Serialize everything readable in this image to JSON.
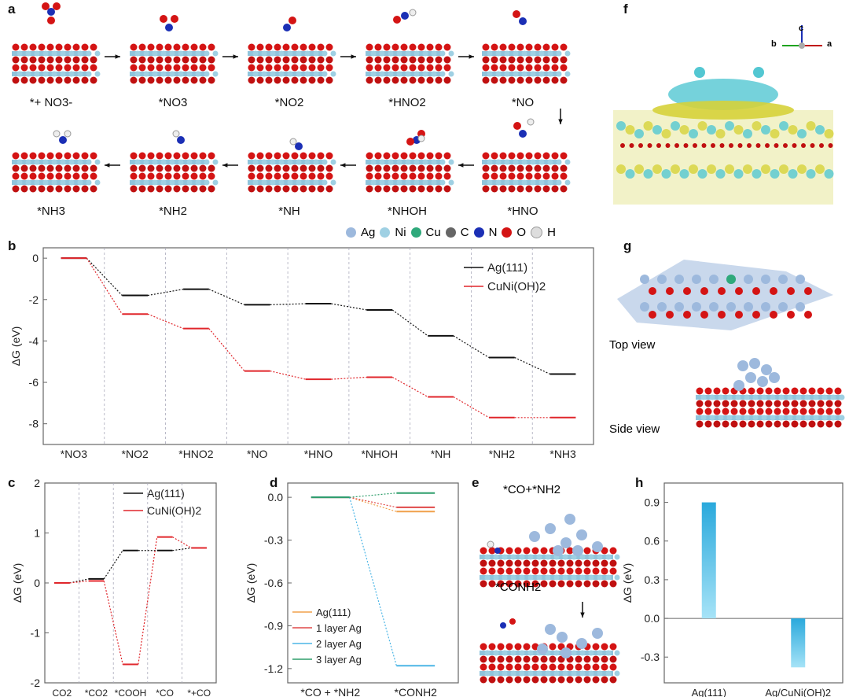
{
  "panels": {
    "a": "a",
    "b": "b",
    "c": "c",
    "d": "d",
    "e": "e",
    "f": "f",
    "g": "g",
    "h": "h"
  },
  "panel_a": {
    "steps_row1": [
      "*+ NO3-",
      "*NO3",
      "*NO2",
      "*HNO2",
      "*NO"
    ],
    "steps_row2": [
      "*NH3",
      "*NH2",
      "*NH",
      "*NHOH",
      "*HNO"
    ],
    "legend": [
      "Ag",
      "Ni",
      "Cu",
      "C",
      "N",
      "O",
      "H"
    ]
  },
  "panel_e": {
    "top": "*CO+*NH2",
    "bottom": "*CONH2"
  },
  "panel_f": {
    "axes": [
      "c",
      "b",
      "a"
    ]
  },
  "panel_g": {
    "top": "Top view",
    "side": "Side view"
  },
  "colors": {
    "ag111": "#111111",
    "cuni": "#e0262b",
    "orange": "#f0a04b",
    "red": "#e04848",
    "blue": "#4cb6e6",
    "green": "#2e9e6b",
    "bar": "#2aa9dc"
  },
  "chart_data": [
    {
      "id": "b",
      "type": "line",
      "ylabel": "ΔG (eV)",
      "ylim": [
        -9,
        0.5
      ],
      "yticks": [
        0,
        -2,
        -4,
        -6,
        -8
      ],
      "categories": [
        "*NO3",
        "*NO2",
        "*HNO2",
        "*NO",
        "*HNO",
        "*NHOH",
        "*NH",
        "*NH2",
        "*NH3"
      ],
      "series": [
        {
          "name": "Ag(111)",
          "values": [
            0,
            -1.8,
            -1.5,
            -2.25,
            -2.2,
            -2.5,
            -3.75,
            -4.8,
            -5.6
          ]
        },
        {
          "name": "CuNi(OH)2",
          "values": [
            0,
            -2.7,
            -3.4,
            -5.45,
            -5.85,
            -5.75,
            -6.7,
            -7.7,
            -7.7
          ]
        }
      ],
      "legend": "top-right"
    },
    {
      "id": "c",
      "type": "line",
      "ylabel": "ΔG (eV)",
      "ylim": [
        -2,
        2
      ],
      "yticks": [
        2,
        1,
        0,
        -1,
        -2
      ],
      "categories": [
        "CO2",
        "*CO2",
        "*COOH",
        "*CO",
        "*+CO"
      ],
      "series": [
        {
          "name": "Ag(111)",
          "values": [
            0,
            0.08,
            0.65,
            0.65,
            0.7
          ]
        },
        {
          "name": "CuNi(OH)2",
          "values": [
            0,
            0.04,
            -1.63,
            0.92,
            0.7
          ]
        }
      ],
      "legend": "top-right"
    },
    {
      "id": "d",
      "type": "line",
      "ylabel": "ΔG (eV)",
      "ylim": [
        -1.3,
        0.1
      ],
      "yticks": [
        0.0,
        -0.3,
        -0.6,
        -0.9,
        -1.2
      ],
      "categories": [
        "*CO + *NH2",
        "*CONH2"
      ],
      "series": [
        {
          "name": "Ag(111)",
          "values": [
            0,
            -0.1
          ]
        },
        {
          "name": "1 layer Ag",
          "values": [
            0,
            -0.07
          ]
        },
        {
          "name": "2 layer Ag",
          "values": [
            0,
            -1.18
          ]
        },
        {
          "name": "3 layer Ag",
          "values": [
            0,
            0.03
          ]
        }
      ],
      "legend": "bottom-left"
    },
    {
      "id": "h",
      "type": "bar",
      "ylabel": "ΔG (eV)",
      "ylim": [
        -0.5,
        1.05
      ],
      "yticks": [
        0.9,
        0.6,
        0.3,
        0.0,
        -0.3
      ],
      "categories": [
        "Ag(111)",
        "Ag/CuNi(OH)2"
      ],
      "values": [
        0.9,
        -0.38
      ]
    }
  ]
}
